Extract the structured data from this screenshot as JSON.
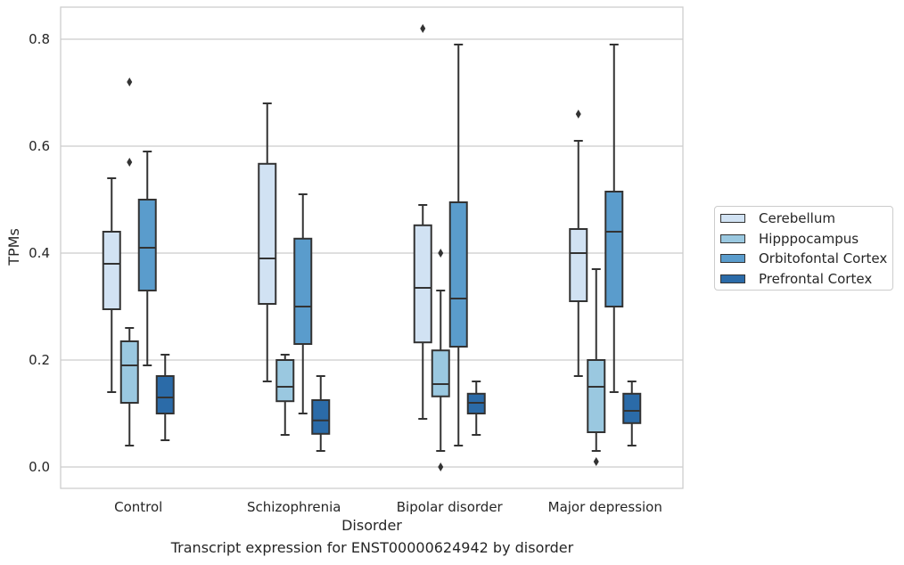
{
  "chart_data": {
    "type": "box",
    "caption": "Transcript expression for ENST00000624942 by disorder",
    "xlabel": "Disorder",
    "ylabel": "TPMs",
    "ylim": [
      -0.04,
      0.86
    ],
    "yticks": [
      "0.0",
      "0.2",
      "0.4",
      "0.6",
      "0.8"
    ],
    "ytick_values": [
      0.0,
      0.2,
      0.4,
      0.6,
      0.8
    ],
    "grid": true,
    "legend_position": "right",
    "categories": [
      "Control",
      "Schizophrenia",
      "Bipolar disorder",
      "Major depression"
    ],
    "series": [
      {
        "name": "Cerebellum",
        "color": "#d1e2f3",
        "boxes": [
          {
            "whislo": 0.14,
            "q1": 0.295,
            "med": 0.38,
            "q3": 0.44,
            "whishi": 0.54,
            "fliers": []
          },
          {
            "whislo": 0.16,
            "q1": 0.305,
            "med": 0.39,
            "q3": 0.567,
            "whishi": 0.68,
            "fliers": []
          },
          {
            "whislo": 0.09,
            "q1": 0.233,
            "med": 0.335,
            "q3": 0.452,
            "whishi": 0.49,
            "fliers": [
              0.82
            ]
          },
          {
            "whislo": 0.17,
            "q1": 0.31,
            "med": 0.4,
            "q3": 0.445,
            "whishi": 0.61,
            "fliers": [
              0.66
            ]
          }
        ]
      },
      {
        "name": "Hipppocampus",
        "color": "#9ac8e0",
        "boxes": [
          {
            "whislo": 0.04,
            "q1": 0.12,
            "med": 0.19,
            "q3": 0.235,
            "whishi": 0.26,
            "fliers": [
              0.57,
              0.72
            ]
          },
          {
            "whislo": 0.06,
            "q1": 0.123,
            "med": 0.15,
            "q3": 0.2,
            "whishi": 0.21,
            "fliers": []
          },
          {
            "whislo": 0.03,
            "q1": 0.132,
            "med": 0.155,
            "q3": 0.218,
            "whishi": 0.33,
            "fliers": [
              0.0,
              0.4
            ]
          },
          {
            "whislo": 0.03,
            "q1": 0.065,
            "med": 0.15,
            "q3": 0.2,
            "whishi": 0.37,
            "fliers": [
              0.01
            ]
          }
        ]
      },
      {
        "name": "Orbitofontal Cortex",
        "color": "#5a9ccc",
        "boxes": [
          {
            "whislo": 0.19,
            "q1": 0.33,
            "med": 0.41,
            "q3": 0.5,
            "whishi": 0.59,
            "fliers": []
          },
          {
            "whislo": 0.1,
            "q1": 0.23,
            "med": 0.3,
            "q3": 0.427,
            "whishi": 0.51,
            "fliers": []
          },
          {
            "whislo": 0.04,
            "q1": 0.225,
            "med": 0.315,
            "q3": 0.495,
            "whishi": 0.79,
            "fliers": []
          },
          {
            "whislo": 0.14,
            "q1": 0.3,
            "med": 0.44,
            "q3": 0.515,
            "whishi": 0.79,
            "fliers": []
          }
        ]
      },
      {
        "name": "Prefrontal Cortex",
        "color": "#2b6ba8",
        "boxes": [
          {
            "whislo": 0.05,
            "q1": 0.1,
            "med": 0.13,
            "q3": 0.17,
            "whishi": 0.21,
            "fliers": []
          },
          {
            "whislo": 0.03,
            "q1": 0.062,
            "med": 0.087,
            "q3": 0.125,
            "whishi": 0.17,
            "fliers": []
          },
          {
            "whislo": 0.06,
            "q1": 0.1,
            "med": 0.12,
            "q3": 0.137,
            "whishi": 0.16,
            "fliers": []
          },
          {
            "whislo": 0.04,
            "q1": 0.082,
            "med": 0.105,
            "q3": 0.137,
            "whishi": 0.16,
            "fliers": []
          }
        ]
      }
    ]
  }
}
